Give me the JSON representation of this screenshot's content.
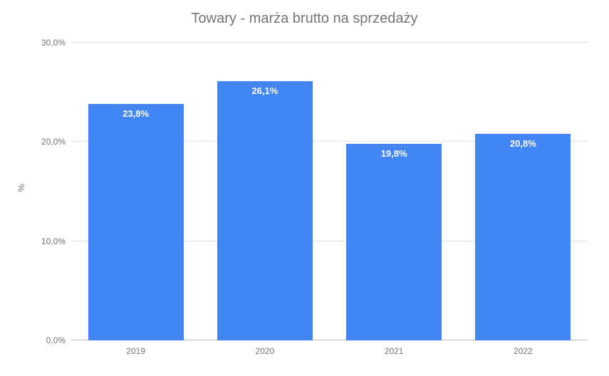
{
  "chart": {
    "type": "bar",
    "title": "Towary - marża brutto na sprzedaży",
    "title_fontsize": 20,
    "title_color": "#757575",
    "background_color": "#ffffff",
    "grid_color": "#e0e0e0",
    "text_color": "#757575",
    "ylabel": "%",
    "label_fontsize": 12,
    "ylim": [
      0,
      30
    ],
    "ytick_positions": [
      0,
      10,
      20,
      30
    ],
    "ytick_labels": [
      "0,0%",
      "10,0%",
      "20,0%",
      "30,0%"
    ],
    "categories": [
      "2019",
      "2020",
      "2021",
      "2022"
    ],
    "values": [
      23.8,
      26.1,
      19.8,
      20.8
    ],
    "value_labels": [
      "23,8%",
      "26,1%",
      "19,8%",
      "20,8%"
    ],
    "bar_color": "#4285f4",
    "bar_label_color": "#ffffff",
    "bar_label_fontsize": 13,
    "bar_width": 0.74,
    "tick_label_fontsize": 12
  }
}
